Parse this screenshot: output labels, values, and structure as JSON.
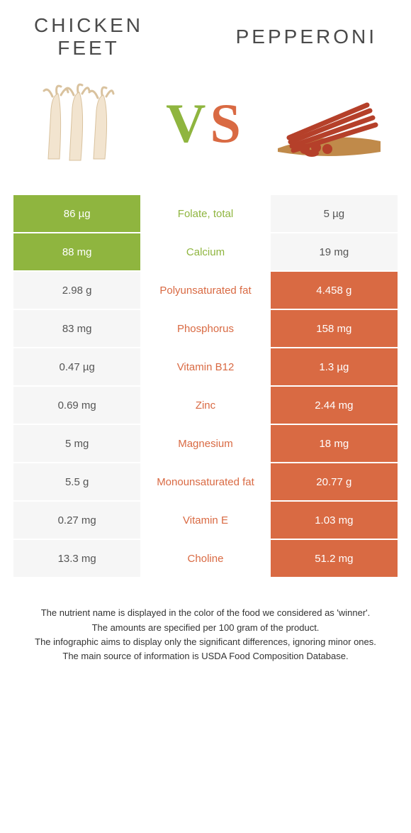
{
  "colors": {
    "left_food": "#8fb53f",
    "right_food": "#d96a43",
    "neutral_bg": "#f6f6f6",
    "text_on_color": "#ffffff",
    "mid_text_left_winner": "#8fb53f",
    "mid_text_right_winner": "#d96a43"
  },
  "header": {
    "left_title": "CHICKEN\nFEET",
    "right_title": "PEPPERONI",
    "vs_v": "V",
    "vs_s": "S"
  },
  "rows": [
    {
      "left": "86 µg",
      "label": "Folate, total",
      "right": "5 µg",
      "winner": "left"
    },
    {
      "left": "88 mg",
      "label": "Calcium",
      "right": "19 mg",
      "winner": "left"
    },
    {
      "left": "2.98 g",
      "label": "Polyunsaturated fat",
      "right": "4.458 g",
      "winner": "right"
    },
    {
      "left": "83 mg",
      "label": "Phosphorus",
      "right": "158 mg",
      "winner": "right"
    },
    {
      "left": "0.47 µg",
      "label": "Vitamin B12",
      "right": "1.3 µg",
      "winner": "right"
    },
    {
      "left": "0.69 mg",
      "label": "Zinc",
      "right": "2.44 mg",
      "winner": "right"
    },
    {
      "left": "5 mg",
      "label": "Magnesium",
      "right": "18 mg",
      "winner": "right"
    },
    {
      "left": "5.5 g",
      "label": "Monounsaturated fat",
      "right": "20.77 g",
      "winner": "right"
    },
    {
      "left": "0.27 mg",
      "label": "Vitamin E",
      "right": "1.03 mg",
      "winner": "right"
    },
    {
      "left": "13.3 mg",
      "label": "Choline",
      "right": "51.2 mg",
      "winner": "right"
    }
  ],
  "footnotes": [
    "The nutrient name is displayed in the color of the food we considered as 'winner'.",
    "The amounts are specified per 100 gram of the product.",
    "The infographic aims to display only the significant differences, ignoring minor ones.",
    "The main source of information is USDA Food Composition Database."
  ]
}
